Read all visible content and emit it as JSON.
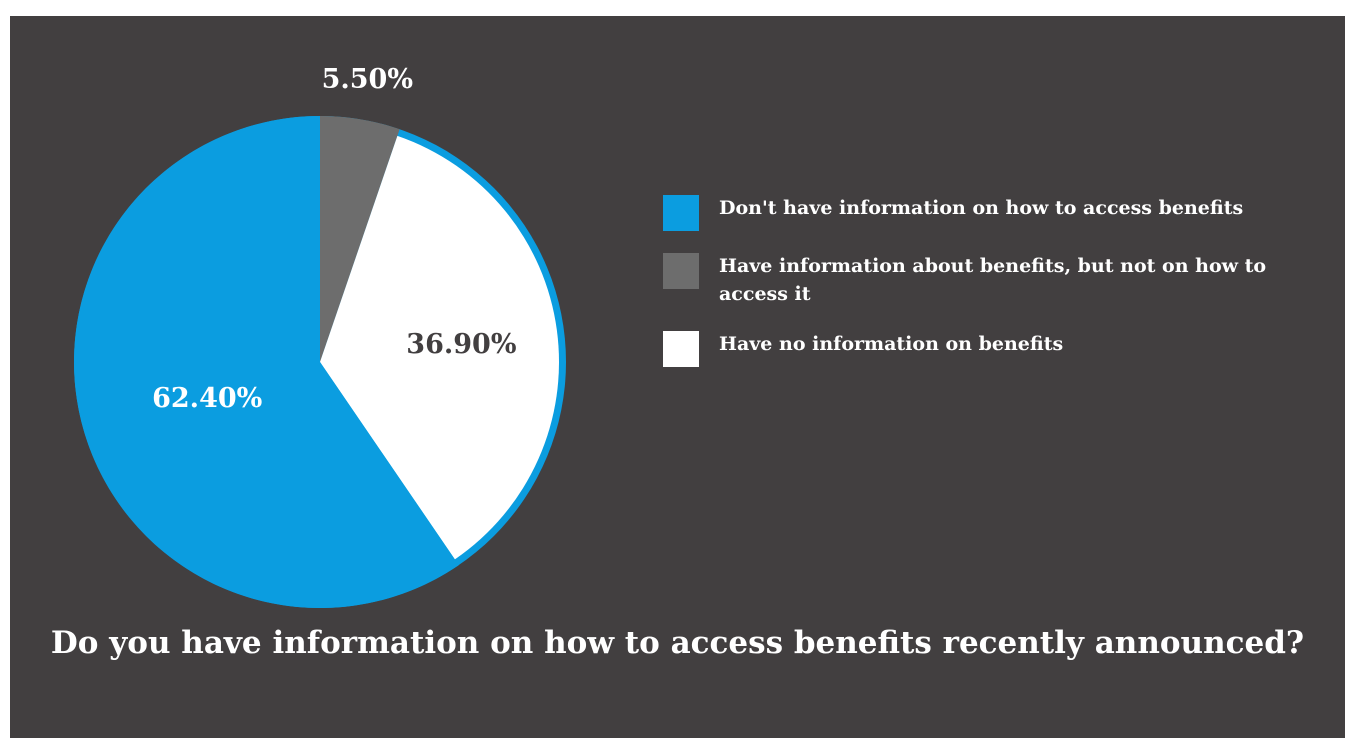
{
  "chart_data": {
    "type": "pie",
    "title": "Do you have information on how to access benefits recently announced?",
    "legend_position": "right",
    "slices": [
      {
        "name": "Have information about benefits, but not on how to access it",
        "value": 5.5,
        "label": "5.50%",
        "color": "#6d6d6d",
        "label_color": "#ffffff"
      },
      {
        "name": "Have no information on benefits",
        "value": 36.9,
        "label": "36.90%",
        "color": "#ffffff",
        "label_color": "#423f40"
      },
      {
        "name": "Don't have information on how to access benefits",
        "value": 62.4,
        "label": "62.40%",
        "color": "#0b9de0",
        "label_color": "#ffffff"
      }
    ],
    "legend": [
      {
        "label": "Don't have information on how to access benefits",
        "color": "#0b9de0"
      },
      {
        "label": "Have information about benefits, but not on how to access it",
        "color": "#6d6d6d"
      },
      {
        "label": "Have no information on benefits",
        "color": "#ffffff"
      }
    ]
  },
  "colors": {
    "background": "#423f40",
    "accent": "#0b9de0"
  }
}
